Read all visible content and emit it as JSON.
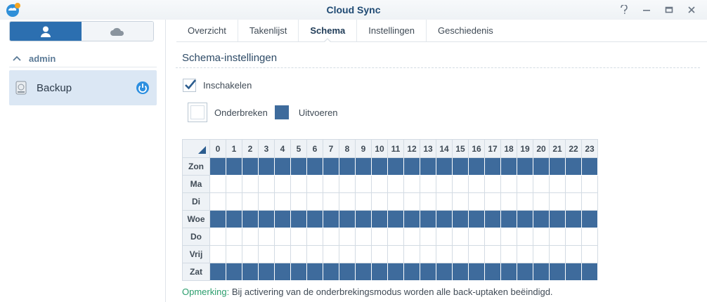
{
  "window": {
    "title": "Cloud Sync",
    "app_icon": "cloud-sync-app-icon",
    "controls": [
      "help-icon",
      "minimize-icon",
      "maximize-icon",
      "close-icon"
    ]
  },
  "sidebar": {
    "segments": [
      {
        "icon": "user-icon",
        "active": true
      },
      {
        "icon": "cloud-icon",
        "active": false
      }
    ],
    "group": {
      "label": "admin",
      "expanded": true
    },
    "tasks": [
      {
        "name": "Backup",
        "icon": "drive-icon",
        "status_icon": "power-icon",
        "selected": true
      }
    ]
  },
  "tabs": [
    {
      "label": "Overzicht",
      "active": false
    },
    {
      "label": "Takenlijst",
      "active": false
    },
    {
      "label": "Schema",
      "active": true
    },
    {
      "label": "Instellingen",
      "active": false
    },
    {
      "label": "Geschiedenis",
      "active": false
    }
  ],
  "schedule": {
    "section_title": "Schema-instellingen",
    "enable_label": "Inschakelen",
    "enabled": true,
    "legend": {
      "pause_label": "Onderbreken",
      "run_label": "Uitvoeren"
    },
    "hours": [
      "0",
      "1",
      "2",
      "3",
      "4",
      "5",
      "6",
      "7",
      "8",
      "9",
      "10",
      "11",
      "12",
      "13",
      "14",
      "15",
      "16",
      "17",
      "18",
      "19",
      "20",
      "21",
      "22",
      "23"
    ],
    "days": [
      {
        "label": "Zon",
        "active": true
      },
      {
        "label": "Ma",
        "active": false
      },
      {
        "label": "Di",
        "active": false
      },
      {
        "label": "Woe",
        "active": true
      },
      {
        "label": "Do",
        "active": false
      },
      {
        "label": "Vrij",
        "active": false
      },
      {
        "label": "Zat",
        "active": true
      }
    ],
    "colors": {
      "run": "#3e6b9c",
      "pause": "#ffffff"
    }
  },
  "note": {
    "key": "Opmerking:",
    "text": " Bij activering van de onderbrekingsmodus worden alle back-uptaken beëindigd."
  }
}
